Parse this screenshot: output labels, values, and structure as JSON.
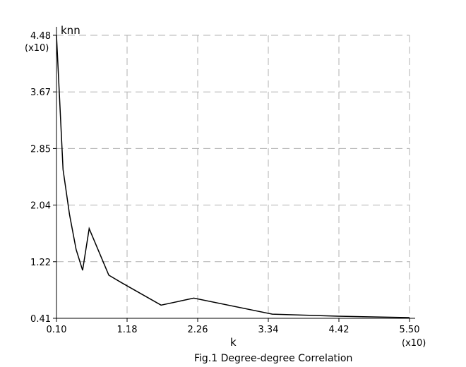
{
  "chart_data": {
    "type": "line",
    "caption": "Fig.1 Degree-degree Correlation",
    "xlabel": "k",
    "ylabel": "knn",
    "x_multiplier": "(x10)",
    "y_multiplier": "(x10)",
    "xlim": [
      0.1,
      5.5
    ],
    "ylim": [
      0.41,
      4.48
    ],
    "x_ticks": [
      "0.10",
      "1.18",
      "2.26",
      "3.34",
      "4.42",
      "5.50"
    ],
    "y_ticks": [
      "0.41",
      "1.22",
      "2.04",
      "2.85",
      "3.67",
      "4.48"
    ],
    "grid": true,
    "grid_style": "dashed",
    "line_color": "#000000",
    "grid_color": "#b0b0b0",
    "series": [
      {
        "x": [
          0.1,
          0.2,
          0.3,
          0.4,
          0.5,
          0.6,
          0.9,
          1.1,
          1.7,
          2.0,
          2.2,
          3.4,
          4.4,
          5.5
        ],
        "y": [
          4.48,
          2.55,
          1.9,
          1.4,
          1.1,
          1.7,
          1.03,
          0.92,
          0.6,
          0.66,
          0.7,
          0.47,
          0.44,
          0.42
        ]
      }
    ]
  }
}
